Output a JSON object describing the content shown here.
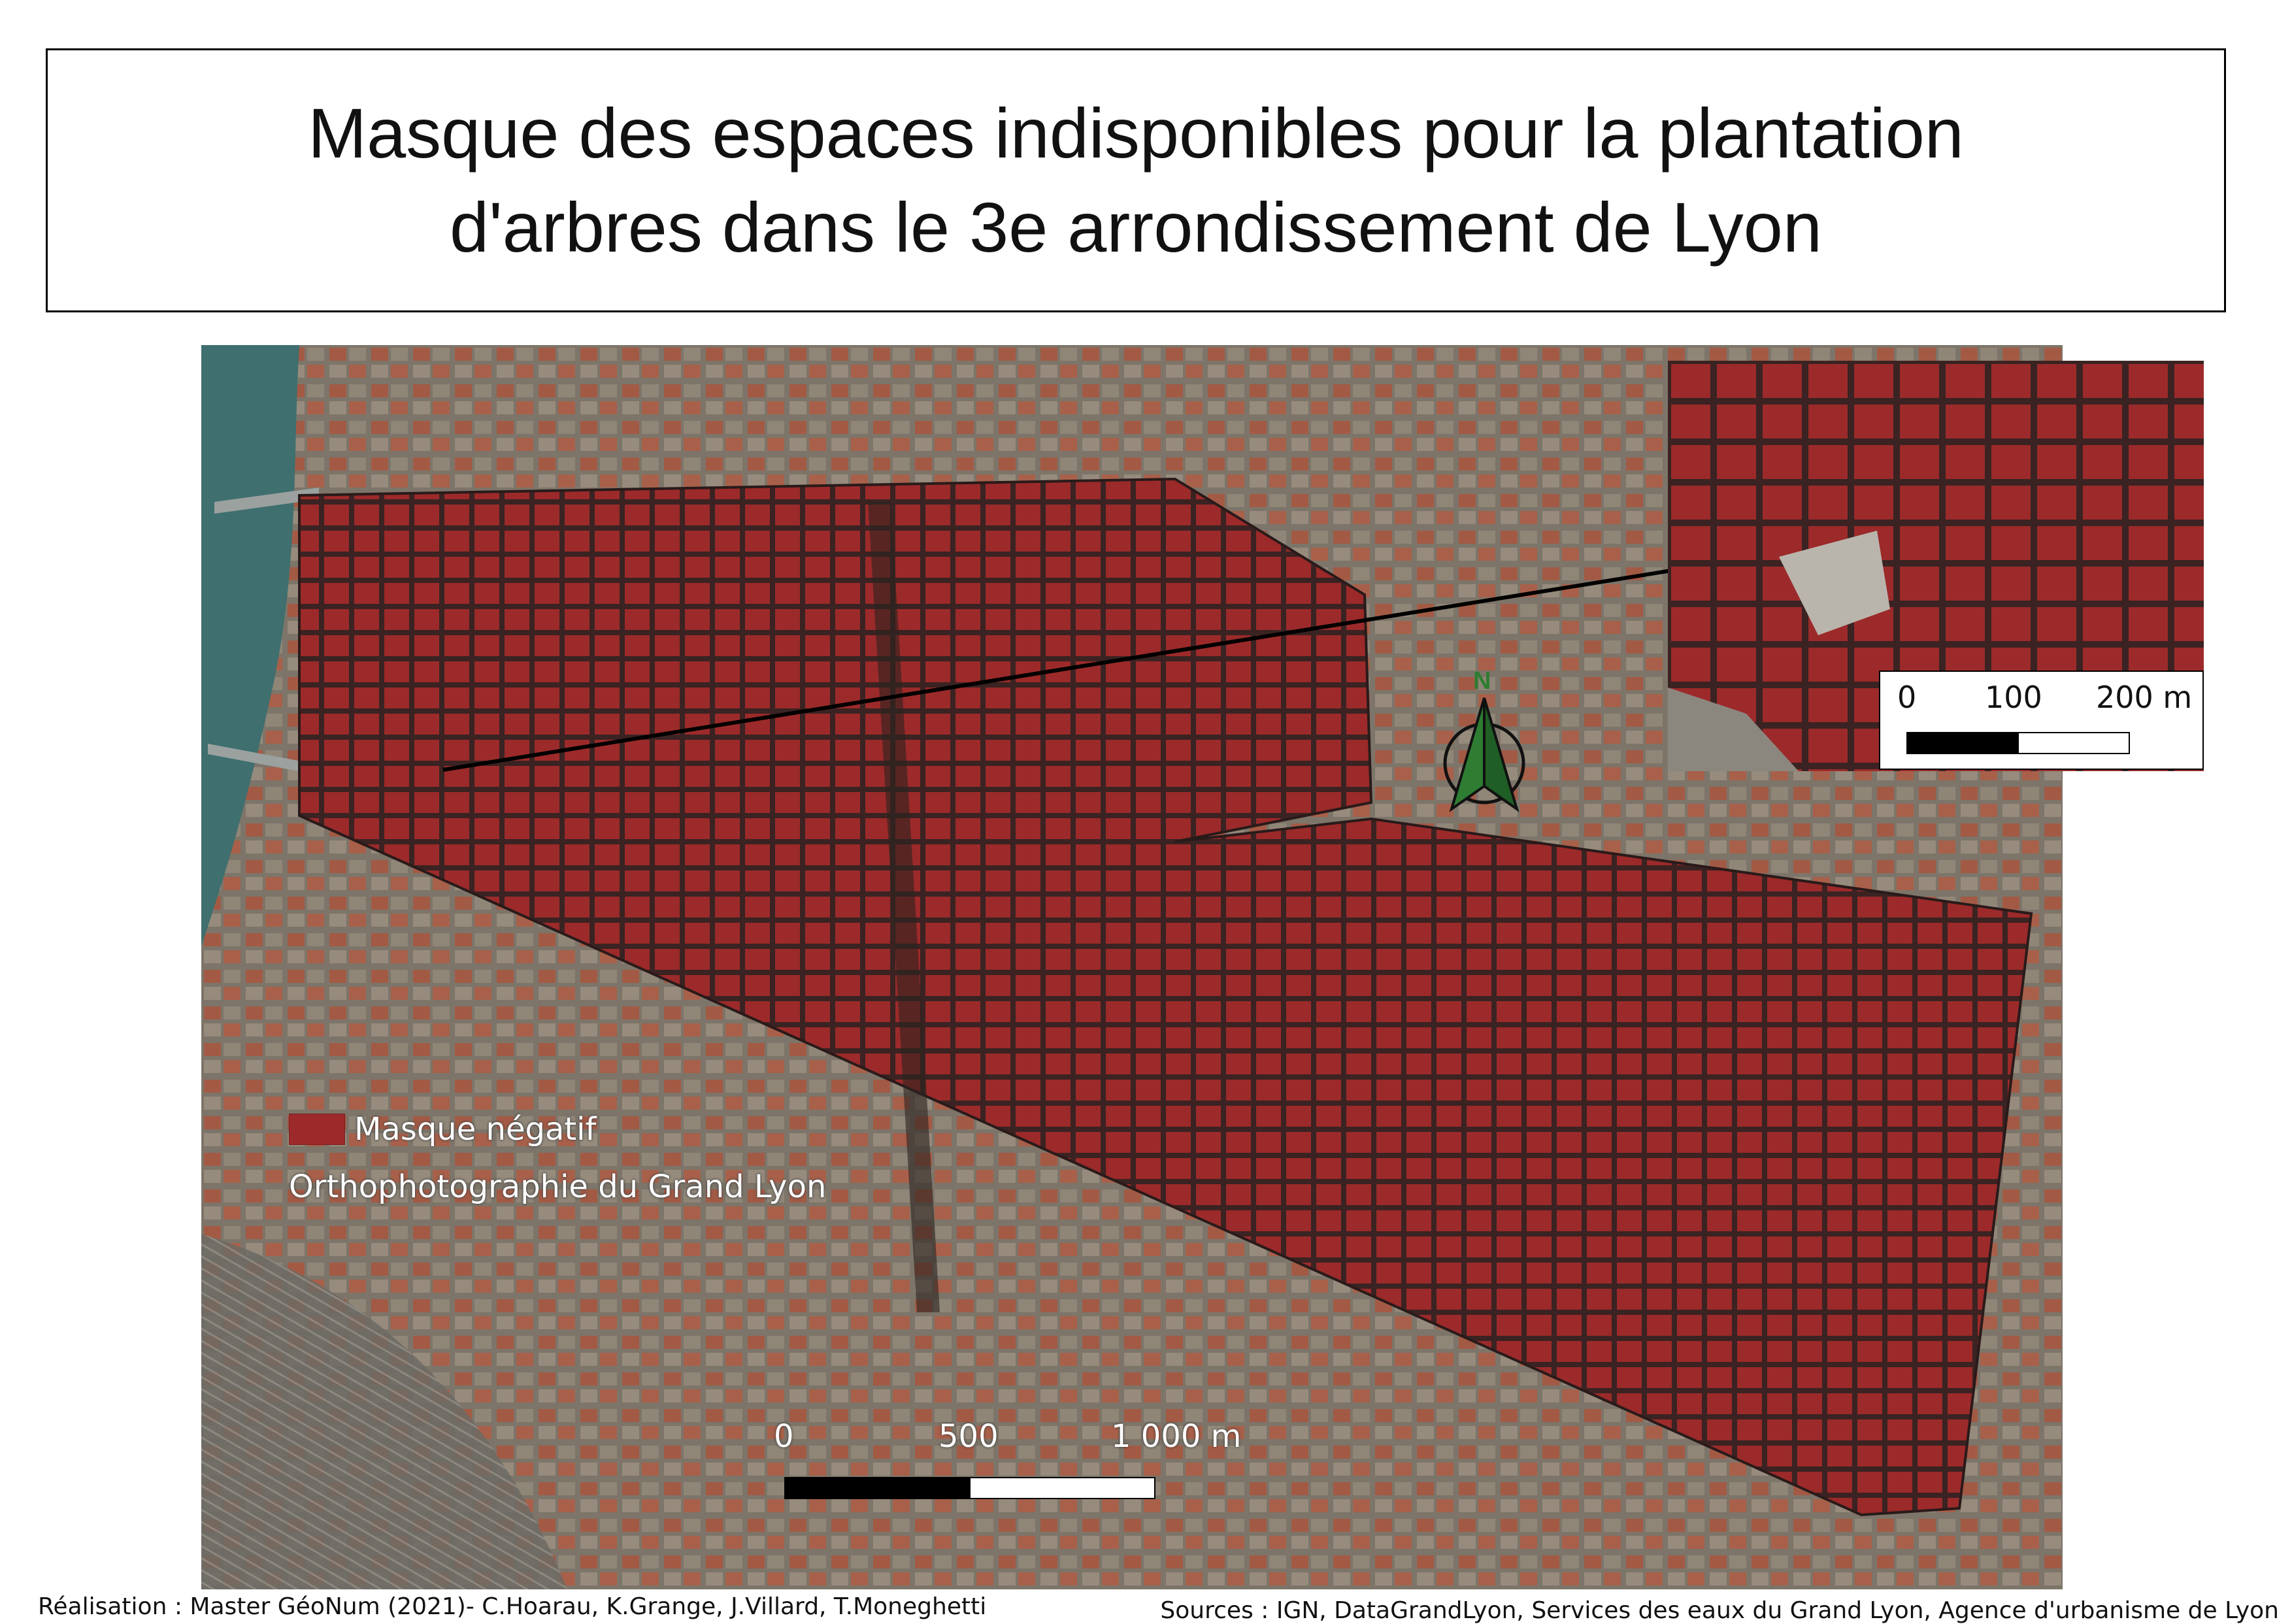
{
  "title": "Masque des espaces indisponibles pour la plantation d'arbres dans le 3e arrondissement de Lyon",
  "legend": {
    "items": [
      {
        "label": "Masque négatif",
        "color": "#9c2a2a"
      },
      {
        "label": "Orthophotographie du Grand Lyon"
      }
    ]
  },
  "scalebar_main": {
    "ticks": [
      "0",
      "500",
      "1 000 m"
    ]
  },
  "scalebar_inset": {
    "ticks": [
      "0",
      "100",
      "200 m"
    ]
  },
  "north_arrow": {
    "letter": "N",
    "color": "#2e7d32",
    "icon": "north-arrow-icon"
  },
  "colors": {
    "mask": "#9c2a2a",
    "river": "#3f6f6e",
    "urban": "#8a6f5f"
  },
  "credits": {
    "realisation": "Réalisation : Master GéoNum (2021)- C.Hoarau, K.Grange, J.Villard, T.Moneghetti",
    "sources": "Sources : IGN, DataGrandLyon, Services des eaux du Grand Lyon, Agence d'urbanisme de Lyon"
  }
}
